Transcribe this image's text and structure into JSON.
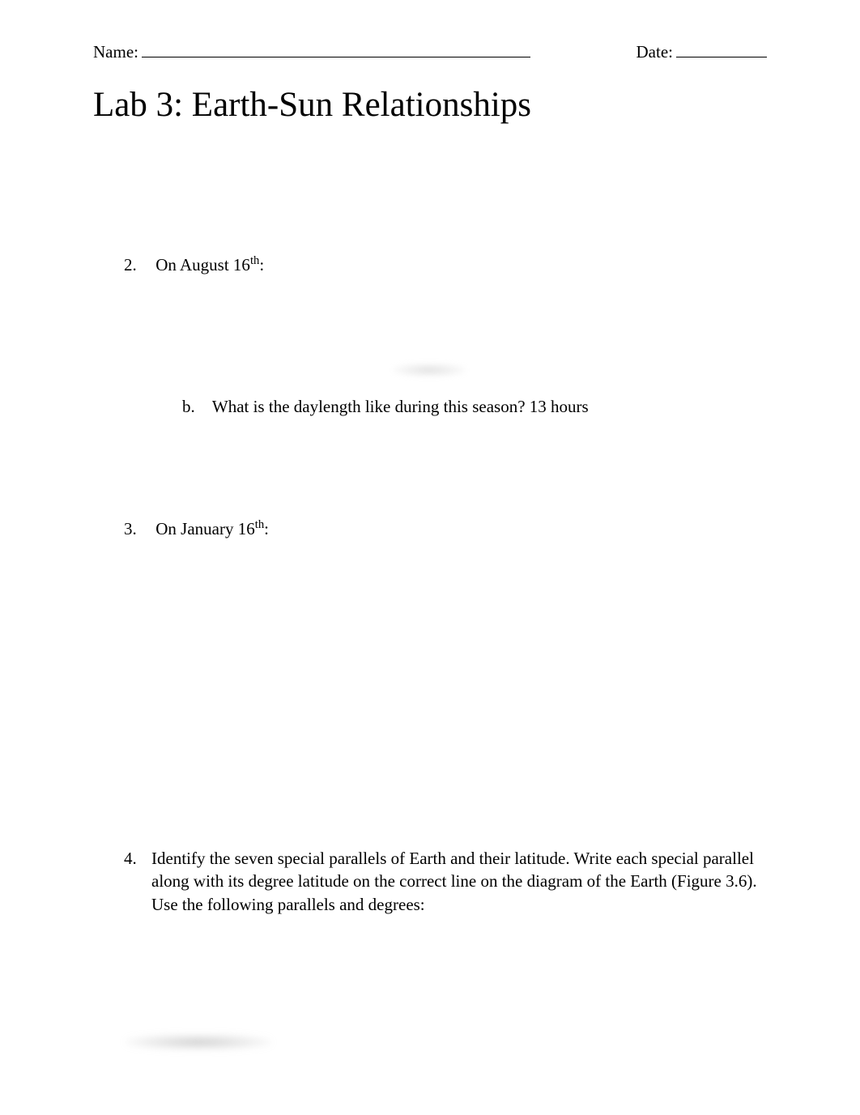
{
  "header": {
    "name_label": "Name:",
    "date_label": "Date:"
  },
  "title": "Lab 3: Earth-Sun Relationships",
  "questions": {
    "q2": {
      "number": "2.",
      "text_prefix": "On August 16",
      "text_suffix": ":",
      "sub_b": {
        "letter": "b.",
        "text": "What is the daylength like during this season?  13 hours"
      }
    },
    "q3": {
      "number": "3.",
      "text_prefix": "On January 16",
      "text_suffix": ":"
    },
    "q4": {
      "number": "4.",
      "text": "Identify the seven special parallels of Earth and their latitude. Write each special parallel along with its degree latitude on the correct line on the diagram of the Earth (Figure 3.6). Use the following parallels and degrees:"
    }
  },
  "colors": {
    "background": "#ffffff",
    "text": "#000000",
    "underline": "#000000"
  },
  "typography": {
    "font_family": "Times New Roman",
    "body_fontsize": 21,
    "title_fontsize": 43
  }
}
